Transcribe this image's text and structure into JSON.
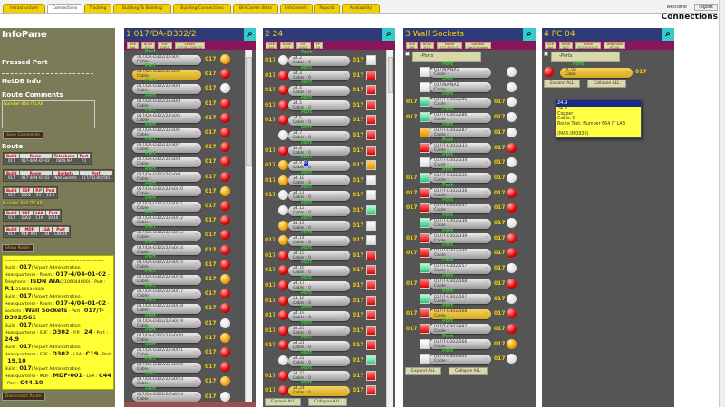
{
  "tabs": [
    "Infrastructure",
    "Connections",
    "Tracking",
    "Building To Building",
    "Building Connections",
    "Bill Comm Stats",
    "InfoSearch",
    "Reports",
    "Availability"
  ],
  "active_tab": "Connections",
  "header": {
    "welcome": "welcome",
    "logout": "logout",
    "title": "Connections"
  },
  "info": {
    "title": "InfoPane",
    "pressed_port": "Pressed Port",
    "netdb": "NetDB Info",
    "route_comments": "Route Comments",
    "comment_value": "Number 664 IT LAB",
    "save": "Save Comments",
    "route": "Route",
    "show_route": "Show Route",
    "disconnect": "Disconnect Route",
    "route_boxes": [
      [
        [
          "Build",
          "017"
        ],
        [
          "Room",
          "017-4/04-01-02"
        ],
        [
          "Telephone",
          "ISDN AIA"
        ],
        [
          "Port",
          "P.1"
        ]
      ],
      [
        [
          "Build",
          "017"
        ],
        [
          "Room",
          "017-4/04-01-02"
        ],
        [
          "Sockets",
          "Wall Sockets"
        ],
        [
          "Port",
          "017/T-D302/561"
        ]
      ],
      [
        [
          "Build",
          "017"
        ],
        [
          "SDF",
          "D302"
        ],
        [
          "P.P",
          "24"
        ],
        [
          "Port",
          "24.9"
        ]
      ],
      [
        [
          "Build",
          "017"
        ],
        [
          "SDF",
          "D302"
        ],
        [
          "LSA",
          "C19"
        ],
        [
          "Port",
          "19.10"
        ]
      ],
      [
        [
          "Build",
          "017"
        ],
        [
          "MDF",
          "MDF-001"
        ],
        [
          "LSA",
          "C44"
        ],
        [
          "Port",
          "C44.10"
        ]
      ]
    ],
    "route_note": "Number 664 IT LAB",
    "route_text": [
      "============================",
      "Build : |017|(Airport Administration Headquarters) - Room : |017-4/04-01-02| - Telephone : |ISDN AIA|(2106644000) - Port : |P.1|(2106644000)",
      "Build : |017|(Airport Administration Headquarters) - Room : |017-4/04-01-02| - Sockets : |Wall Sockets| - Port : |017/T-D302/561",
      "Build : |017|(Airport Administration Headquarters) - SDF : |D302| - P.P. : |24| - Port : |24.9",
      "Build : |017|(Airport Administration Headquarters) - SDF : |D302| - LSA : |C19| - Port : |19.10",
      "Build : |017|(Airport Administration Headquarters) - MDF : |MDF-001| - LSA : |C44| - Port : |C44.10"
    ]
  },
  "columns": [
    {
      "title": "1  017/DA-D302/2",
      "chips": [
        [
          "Site",
          "AIA"
        ],
        [
          "Build",
          "017"
        ],
        [
          "SDF",
          "D302"
        ],
        [
          "Switch",
          "017/DA-D302/2"
        ]
      ]
    },
    {
      "title": "2  24",
      "chips": [
        [
          "Site",
          "AIA"
        ],
        [
          "Build",
          "017"
        ],
        [
          "SDF",
          "D302"
        ],
        [
          "PP",
          "24"
        ]
      ]
    },
    {
      "title": "3  Wall Sockets",
      "chips": [
        [
          "Site",
          "AIA"
        ],
        [
          "Build",
          "017"
        ],
        [
          "Room",
          "017-4/03-02"
        ],
        [
          "Sockets",
          "Wall Sockets"
        ]
      ]
    },
    {
      "title": "4  PC 04",
      "chips": [
        [
          "Site",
          "AIA"
        ],
        [
          "Build",
          "017"
        ],
        [
          "Room",
          "017-4/03-02"
        ],
        [
          "Telephone",
          "PC 04"
        ]
      ]
    }
  ],
  "port_label": "Port",
  "ports_header": "-Ports",
  "expand": "Expand ALL",
  "collapse": "Collapse ALL",
  "col1_rows": {
    "prefix": "017/DA-D302/2/Fa0/",
    "cable": "Cable :",
    "code": "017",
    "highlight": 2,
    "status": [
      "orange",
      "red",
      "white",
      "red",
      "red",
      "red",
      "red",
      "red",
      "red",
      "orange",
      "red",
      "red",
      "red",
      "red",
      "red",
      "orange",
      "red",
      "red",
      "white",
      "orange",
      "red",
      "red",
      "orange",
      "white"
    ]
  },
  "col2_rows": [
    [
      "24.2",
      "017",
      "white",
      "017",
      "white"
    ],
    [
      "24.3",
      "017",
      "red",
      "017",
      "red"
    ],
    [
      "24.4",
      "017",
      "red",
      "017",
      "red"
    ],
    [
      "24.5",
      "017",
      "red",
      "017",
      "red"
    ],
    [
      "24.6",
      "017",
      "red",
      "017",
      "red"
    ],
    [
      "24.7",
      "",
      "white",
      "017",
      "red"
    ],
    [
      "24.8",
      "017",
      "red",
      "017",
      "red"
    ],
    [
      "24.9",
      "017",
      "orange",
      "017",
      "orange"
    ],
    [
      "24.10",
      "017",
      "orange",
      "017",
      "white"
    ],
    [
      "24.11",
      "017",
      "white",
      "017",
      "white"
    ],
    [
      "24.12",
      "",
      "white",
      "017",
      "green"
    ],
    [
      "24.13",
      "",
      "orange",
      "017",
      "white"
    ],
    [
      "24.14",
      "017",
      "orange",
      "017",
      "white"
    ],
    [
      "24.15",
      "017",
      "red",
      "017",
      "red"
    ],
    [
      "24.16",
      "017",
      "red",
      "017",
      "red"
    ],
    [
      "24.17",
      "017",
      "red",
      "017",
      "red"
    ],
    [
      "24.18",
      "017",
      "red",
      "017",
      "red"
    ],
    [
      "24.19",
      "017",
      "red",
      "017",
      "red"
    ],
    [
      "24.20",
      "017",
      "red",
      "017",
      "red"
    ],
    [
      "24.21",
      "017",
      "red",
      "017",
      "red"
    ],
    [
      "24.22",
      "",
      "white",
      "017",
      "green"
    ],
    [
      "24.23",
      "017",
      "red",
      "017",
      "red"
    ],
    [
      "24.24",
      "017",
      "red",
      "017",
      "red"
    ]
  ],
  "col2_cable": "Cable : 0",
  "col2_highlight": "24.24",
  "col3_rows": [
    [
      "017/NA/NA1",
      "",
      "white",
      "",
      "white"
    ],
    [
      "017/NA/NA2",
      "",
      "white",
      "",
      "white"
    ],
    [
      "017/T-D302/285",
      "017",
      "green",
      "017",
      "white"
    ],
    [
      "017/T-D302/286",
      "017",
      "green",
      "017",
      "white"
    ],
    [
      "017/T-D302/287",
      "",
      "orange",
      "017",
      "white"
    ],
    [
      "017/T-D302/333",
      "",
      "red",
      "017",
      "red"
    ],
    [
      "017/T-D302/334",
      "",
      "white",
      "017",
      "white"
    ],
    [
      "017/T-D302/335",
      "017",
      "green",
      "017",
      "white"
    ],
    [
      "017/T-D302/336",
      "017",
      "red",
      "017",
      "red"
    ],
    [
      "017/T-D302/337",
      "017",
      "red",
      "017",
      "red"
    ],
    [
      "017/T-D302/338",
      "",
      "green",
      "017",
      "white"
    ],
    [
      "017/T-D302/339",
      "017",
      "red",
      "017",
      "red"
    ],
    [
      "017/T-D302/340",
      "017",
      "red",
      "017",
      "red"
    ],
    [
      "017/T-D302/557",
      "",
      "green",
      "017",
      "white"
    ],
    [
      "017/T-D302/568",
      "017",
      "red",
      "017",
      "red"
    ],
    [
      "017/T-D302/567",
      "",
      "green",
      "017",
      "white"
    ],
    [
      "017/T-D302/568",
      "017",
      "red",
      "017",
      "red"
    ],
    [
      "017/T-D302/997",
      "017",
      "red",
      "017",
      "red"
    ],
    [
      "017/T-D302/566",
      "",
      "white",
      "017",
      "orange"
    ],
    [
      "017/T-D302/001",
      "",
      "white",
      "017",
      "white"
    ]
  ],
  "col3_cable": "Cable :",
  "col3_highlight": 16,
  "col4_row": {
    "name": "PC 04",
    "cable": "Cable",
    "code": "017",
    "status": "red"
  },
  "tooltip": {
    "title": "24.9",
    "lines": [
      "24.9",
      "Copper",
      "Cable: 0",
      "Route Text: Number 664 IT LAB",
      "",
      "(MAX:060930)"
    ]
  },
  "selected_marker": "R"
}
